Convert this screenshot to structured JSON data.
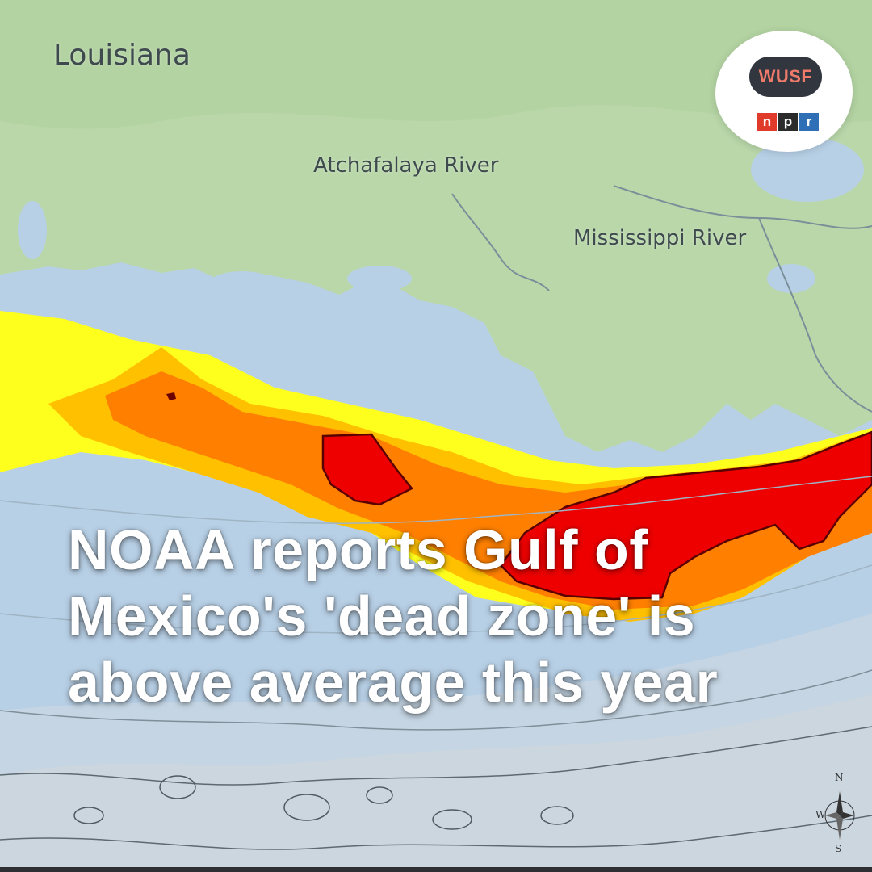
{
  "headline": "NOAA reports Gulf of Mexico's 'dead zone' is above average this year",
  "map": {
    "labels": {
      "state": "Louisiana",
      "river_atchafalaya": "Atchafalaya River",
      "river_mississippi": "Mississippi River"
    },
    "colors": {
      "land": "#b9d7a9",
      "water": "#b8d0e6",
      "deep_water": "#c6d6e2",
      "zone_low": "#ffff1e",
      "zone_mid": "#ffc000",
      "zone_high": "#ff8000",
      "zone_severe": "#ee0000"
    },
    "compass": {
      "n": "N",
      "w": "W",
      "s": "S"
    }
  },
  "logo": {
    "station": "WUSF",
    "network_letters": [
      "n",
      "p",
      "r"
    ],
    "network_colors": [
      "#e03a2a",
      "#2b2b2b",
      "#2f6fb5"
    ]
  }
}
